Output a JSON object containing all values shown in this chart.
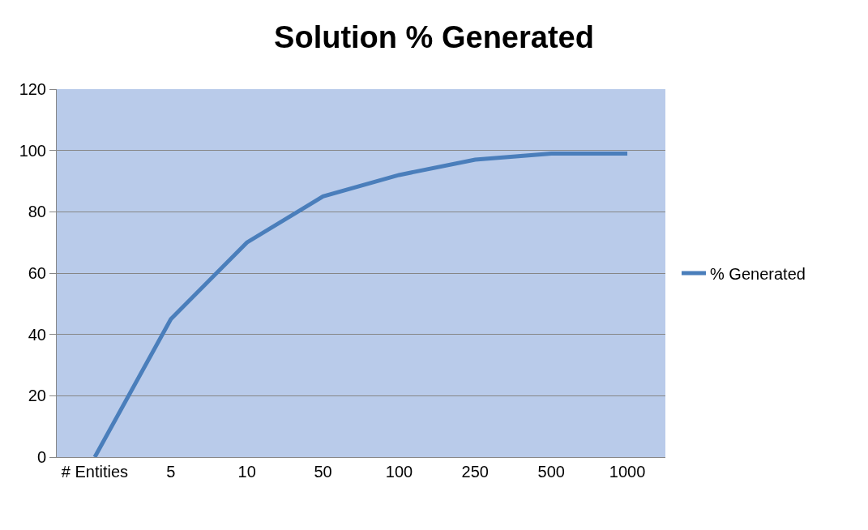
{
  "chart_data": {
    "type": "line",
    "title": "Solution % Generated",
    "categories": [
      "# Entities",
      "5",
      "10",
      "50",
      "100",
      "250",
      "500",
      "1000"
    ],
    "series": [
      {
        "name": "% Generated",
        "color": "#4a7ebb",
        "values": [
          0,
          45,
          70,
          85,
          92,
          97,
          99,
          99
        ]
      }
    ],
    "ylim": [
      0,
      120
    ],
    "yticks": [
      0,
      20,
      40,
      60,
      80,
      100,
      120
    ],
    "grid": "y",
    "legend": "right",
    "marker": "none",
    "line_style": "solid"
  }
}
